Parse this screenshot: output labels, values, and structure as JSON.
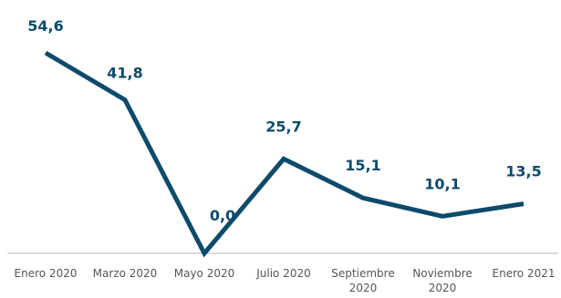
{
  "chart_data": {
    "type": "line",
    "categories": [
      [
        "Enero 2020"
      ],
      [
        "Marzo 2020"
      ],
      [
        "Mayo 2020"
      ],
      [
        "Julio 2020"
      ],
      [
        "Septiembre",
        "2020"
      ],
      [
        "Noviembre",
        "2020"
      ],
      [
        "Enero 2021"
      ]
    ],
    "values": [
      54.6,
      41.8,
      0.0,
      25.7,
      15.1,
      10.1,
      13.5
    ],
    "data_labels": [
      "54,6",
      "41,8",
      "0,0",
      "25,7",
      "15,1",
      "10,1",
      "13,5"
    ],
    "title": "",
    "xlabel": "",
    "ylabel": "",
    "ylim": [
      0,
      54.6
    ],
    "grid": false,
    "legend": "none",
    "colors": {
      "line": "#0d4a6b",
      "labels": "#0d4a6b",
      "axis": "#d0d0d0",
      "ticks": "#555555"
    }
  }
}
